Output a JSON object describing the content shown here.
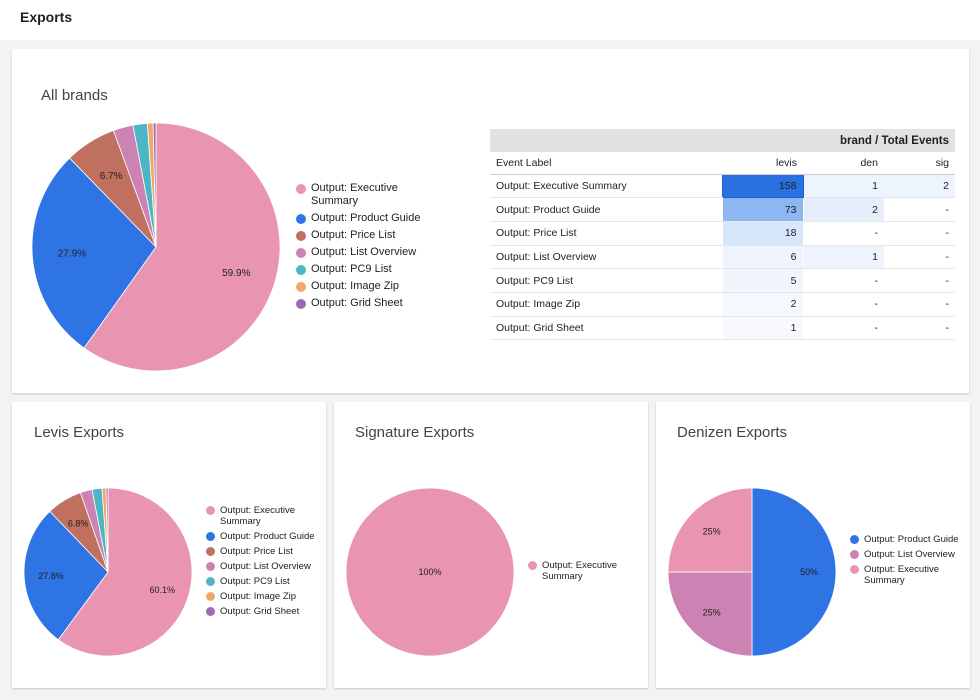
{
  "page": {
    "title": "Exports"
  },
  "cards": {
    "all_brands": {
      "title": "All brands",
      "legend": [
        {
          "label": "Output: Executive Summary",
          "color": "#e994b0"
        },
        {
          "label": "Output: Product Guide",
          "color": "#2f74e4"
        },
        {
          "label": "Output: Price List",
          "color": "#c0705e"
        },
        {
          "label": "Output: List Overview",
          "color": "#cc82b2"
        },
        {
          "label": "Output: PC9 List",
          "color": "#4db6c6"
        },
        {
          "label": "Output: Image Zip",
          "color": "#f0a868"
        },
        {
          "label": "Output: Grid Sheet",
          "color": "#9e6bb0"
        }
      ]
    },
    "levis": {
      "title": "Levis Exports",
      "legend": [
        {
          "label": "Output: Executive Summary",
          "color": "#e994b0"
        },
        {
          "label": "Output: Product Guide",
          "color": "#2f74e4"
        },
        {
          "label": "Output: Price List",
          "color": "#c0705e"
        },
        {
          "label": "Output: List Overview",
          "color": "#cc82b2"
        },
        {
          "label": "Output: PC9 List",
          "color": "#4db6c6"
        },
        {
          "label": "Output: Image Zip",
          "color": "#f0a868"
        },
        {
          "label": "Output: Grid Sheet",
          "color": "#9e6bb0"
        }
      ]
    },
    "signature": {
      "title": "Signature Exports",
      "legend": [
        {
          "label": "Output: Executive Summary",
          "color": "#e994b0"
        }
      ]
    },
    "denizen": {
      "title": "Denizen Exports",
      "legend": [
        {
          "label": "Output: Product Guide",
          "color": "#2f74e4"
        },
        {
          "label": "Output: List Overview",
          "color": "#cc82b2"
        },
        {
          "label": "Output: Executive Summary",
          "color": "#e994b0"
        }
      ]
    }
  },
  "table": {
    "group_header": "brand / Total Events",
    "columns": [
      "Event Label",
      "levis",
      "den",
      "sig"
    ],
    "rows": [
      {
        "label": "Output: Executive Summary",
        "levis": "158",
        "den": "1",
        "sig": "2"
      },
      {
        "label": "Output: Product Guide",
        "levis": "73",
        "den": "2",
        "sig": "-"
      },
      {
        "label": "Output: Price List",
        "levis": "18",
        "den": "-",
        "sig": "-"
      },
      {
        "label": "Output: List Overview",
        "levis": "6",
        "den": "1",
        "sig": "-"
      },
      {
        "label": "Output: PC9 List",
        "levis": "5",
        "den": "-",
        "sig": "-"
      },
      {
        "label": "Output: Image Zip",
        "levis": "2",
        "den": "-",
        "sig": "-"
      },
      {
        "label": "Output: Grid Sheet",
        "levis": "1",
        "den": "-",
        "sig": "-"
      }
    ]
  },
  "chart_data": [
    {
      "type": "pie",
      "title": "All brands",
      "categories": [
        "Output: Executive Summary",
        "Output: Product Guide",
        "Output: Price List",
        "Output: List Overview",
        "Output: PC9 List",
        "Output: Image Zip",
        "Output: Grid Sheet"
      ],
      "values": [
        161,
        75,
        18,
        7,
        5,
        2,
        1
      ],
      "data_labels": [
        "59.9%",
        "27.9%",
        "6.7%",
        "",
        "",
        "",
        ""
      ],
      "colors": [
        "#e994b0",
        "#2f74e4",
        "#c0705e",
        "#cc82b2",
        "#4db6c6",
        "#f0a868",
        "#9e6bb0"
      ],
      "legend": "right"
    },
    {
      "type": "pie",
      "title": "Levis Exports",
      "categories": [
        "Output: Executive Summary",
        "Output: Product Guide",
        "Output: Price List",
        "Output: List Overview",
        "Output: PC9 List",
        "Output: Image Zip",
        "Output: Grid Sheet"
      ],
      "values": [
        158,
        73,
        18,
        6,
        5,
        2,
        1
      ],
      "data_labels": [
        "60.1%",
        "27.8%",
        "6.8%",
        "",
        "",
        "",
        ""
      ],
      "colors": [
        "#e994b0",
        "#2f74e4",
        "#c0705e",
        "#cc82b2",
        "#4db6c6",
        "#f0a868",
        "#9e6bb0"
      ],
      "legend": "right"
    },
    {
      "type": "pie",
      "title": "Signature Exports",
      "categories": [
        "Output: Executive Summary"
      ],
      "values": [
        2
      ],
      "data_labels": [
        "100%"
      ],
      "colors": [
        "#e994b0"
      ],
      "legend": "right"
    },
    {
      "type": "pie",
      "title": "Denizen Exports",
      "categories": [
        "Output: Product Guide",
        "Output: List Overview",
        "Output: Executive Summary"
      ],
      "values": [
        2,
        1,
        1
      ],
      "data_labels": [
        "50%",
        "25%",
        "25%"
      ],
      "colors": [
        "#2f74e4",
        "#cc82b2",
        "#e994b0"
      ],
      "legend": "right"
    }
  ]
}
